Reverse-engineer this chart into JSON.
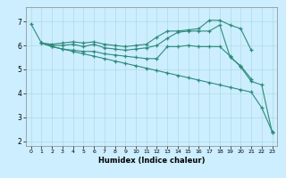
{
  "title": "",
  "xlabel": "Humidex (Indice chaleur)",
  "background_color": "#cceeff",
  "line_color": "#2e8b7a",
  "xlim": [
    -0.5,
    23.5
  ],
  "ylim": [
    1.8,
    7.6
  ],
  "yticks": [
    2,
    3,
    4,
    5,
    6,
    7
  ],
  "xticks": [
    0,
    1,
    2,
    3,
    4,
    5,
    6,
    7,
    8,
    9,
    10,
    11,
    12,
    13,
    14,
    15,
    16,
    17,
    18,
    19,
    20,
    21,
    22,
    23
  ],
  "lines": [
    {
      "x": [
        0,
        1,
        2,
        3,
        4,
        5,
        6,
        7,
        8,
        9,
        10,
        11,
        12,
        13,
        14,
        15,
        16,
        17,
        18,
        19,
        20,
        21,
        22,
        23
      ],
      "y": [
        6.9,
        6.1,
        5.95,
        5.85,
        5.75,
        5.65,
        5.55,
        5.45,
        5.35,
        5.25,
        5.15,
        5.05,
        4.95,
        4.85,
        4.75,
        4.65,
        4.55,
        4.45,
        4.35,
        4.25,
        4.15,
        4.05,
        3.4,
        2.4
      ]
    },
    {
      "x": [
        1,
        2,
        3,
        4,
        5,
        6,
        7,
        8,
        9,
        10,
        11,
        12,
        13,
        14,
        15,
        16,
        17,
        18,
        19,
        20,
        21
      ],
      "y": [
        6.1,
        6.05,
        6.1,
        6.15,
        6.1,
        6.15,
        6.05,
        6.0,
        5.95,
        6.0,
        6.05,
        6.35,
        6.6,
        6.6,
        6.65,
        6.7,
        7.05,
        7.05,
        6.85,
        6.7,
        5.8
      ]
    },
    {
      "x": [
        1,
        2,
        3,
        4,
        5,
        6,
        7,
        8,
        9,
        10,
        11,
        12,
        13,
        14,
        15,
        16,
        17,
        18,
        19,
        20,
        21
      ],
      "y": [
        6.1,
        6.0,
        6.0,
        6.05,
        5.95,
        6.05,
        5.9,
        5.85,
        5.8,
        5.85,
        5.9,
        6.0,
        6.3,
        6.55,
        6.6,
        6.6,
        6.6,
        6.85,
        5.5,
        5.15,
        4.6
      ]
    },
    {
      "x": [
        1,
        2,
        3,
        4,
        5,
        6,
        7,
        8,
        9,
        10,
        11,
        12,
        13,
        14,
        15,
        16,
        17,
        18,
        19,
        20,
        21,
        22,
        23
      ],
      "y": [
        6.1,
        5.95,
        5.85,
        5.8,
        5.75,
        5.75,
        5.65,
        5.6,
        5.55,
        5.5,
        5.45,
        5.45,
        5.95,
        5.95,
        6.0,
        5.95,
        5.95,
        5.95,
        5.55,
        5.1,
        4.5,
        4.35,
        2.35
      ]
    }
  ]
}
